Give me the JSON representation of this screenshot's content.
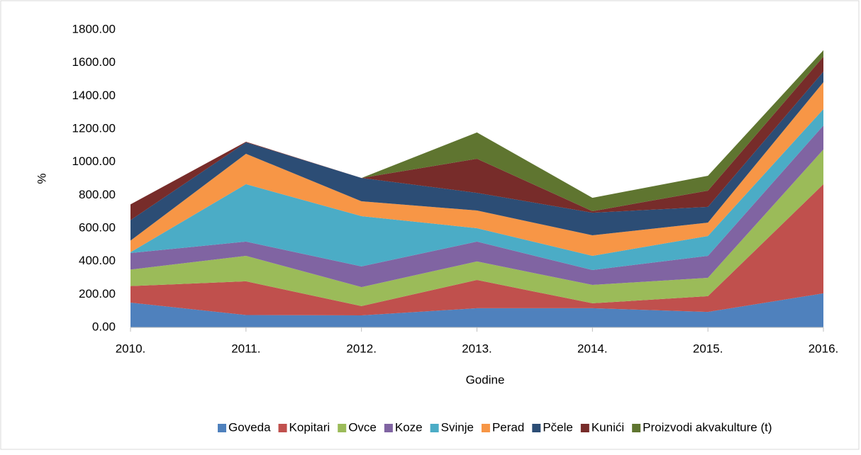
{
  "chart_data": {
    "type": "stacked_area",
    "x_label": "Godine",
    "y_label": "%",
    "categories": [
      "2010.",
      "2011.",
      "2012.",
      "2013.",
      "2014.",
      "2015.",
      "2016."
    ],
    "ylim": [
      0,
      1800
    ],
    "yticks": [
      {
        "value": 0,
        "label": "0.00"
      },
      {
        "value": 200,
        "label": "200.00"
      },
      {
        "value": 400,
        "label": "400.00"
      },
      {
        "value": 600,
        "label": "600.00"
      },
      {
        "value": 800,
        "label": "800.00"
      },
      {
        "value": 1000,
        "label": "1000.00"
      },
      {
        "value": 1200,
        "label": "1200.00"
      },
      {
        "value": 1400,
        "label": "1400.00"
      },
      {
        "value": 1600,
        "label": "1600.00"
      },
      {
        "value": 1800,
        "label": "1800.00"
      }
    ],
    "legend": "bottom",
    "series": [
      {
        "name": "Goveda",
        "color": "#4f81bd",
        "values": [
          150,
          75,
          73,
          116,
          116,
          94,
          206
        ]
      },
      {
        "name": "Kopitari",
        "color": "#c0504d",
        "values": [
          100,
          204,
          56,
          171,
          30,
          95,
          660
        ]
      },
      {
        "name": "Ovce",
        "color": "#9bbb59",
        "values": [
          100,
          154,
          115,
          112,
          111,
          111,
          210
        ]
      },
      {
        "name": "Koze",
        "color": "#8064a2",
        "values": [
          100,
          86,
          125,
          120,
          90,
          133,
          145
        ]
      },
      {
        "name": "Svinje",
        "color": "#4bacc6",
        "values": [
          5,
          347,
          304,
          81,
          86,
          120,
          99
        ]
      },
      {
        "name": "Perad",
        "color": "#f79646",
        "values": [
          70,
          184,
          90,
          107,
          124,
          81,
          163
        ]
      },
      {
        "name": "Pčele",
        "color": "#2c4d75",
        "values": [
          124,
          69,
          141,
          107,
          137,
          95,
          64
        ]
      },
      {
        "name": "Kunići",
        "color": "#772c2a",
        "values": [
          95,
          4,
          0,
          206,
          9,
          98,
          90
        ]
      },
      {
        "name": "Proizvodi akvakulture (t)",
        "color": "#5f7530",
        "values": [
          0,
          0,
          0,
          159,
          81,
          90,
          39
        ]
      }
    ]
  }
}
